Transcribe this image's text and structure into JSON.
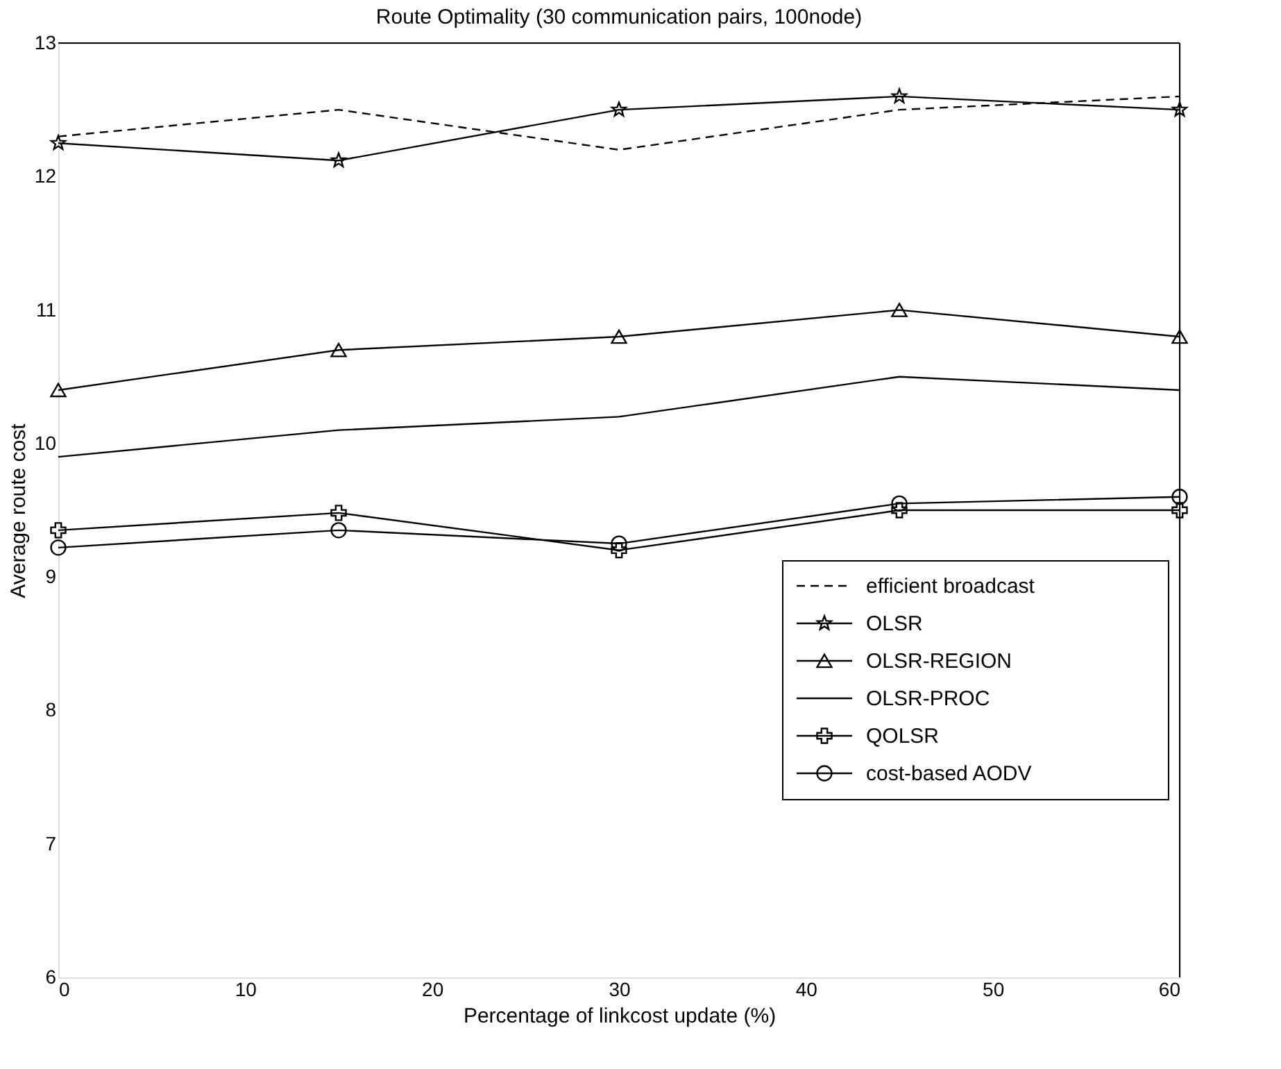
{
  "chart_data": {
    "type": "line",
    "title": "Route Optimality (30 communication pairs, 100node)",
    "xlabel": "Percentage of linkcost update (%)",
    "ylabel": "Average route cost",
    "x": [
      0,
      15,
      30,
      45,
      60
    ],
    "xlim": [
      0,
      60
    ],
    "xticks": [
      0,
      10,
      20,
      30,
      40,
      50,
      60
    ],
    "ylim": [
      6,
      13
    ],
    "yticks": [
      6,
      7,
      8,
      9,
      10,
      11,
      12,
      13
    ],
    "grid": false,
    "legend": "bottom right",
    "series": [
      {
        "name": "efficient broadcast",
        "color": "#000000",
        "line_style": "dashed",
        "marker": "none",
        "values": [
          12.3,
          12.5,
          12.2,
          12.5,
          12.6
        ]
      },
      {
        "name": "OLSR",
        "color": "#000000",
        "line_style": "solid",
        "marker": "star",
        "values": [
          12.25,
          12.12,
          12.5,
          12.6,
          12.5
        ]
      },
      {
        "name": "OLSR-REGION",
        "color": "#000000",
        "line_style": "solid",
        "marker": "triangle",
        "values": [
          10.4,
          10.7,
          10.8,
          11.0,
          10.8
        ]
      },
      {
        "name": "OLSR-PROC",
        "color": "#000000",
        "line_style": "solid",
        "marker": "none",
        "values": [
          9.9,
          10.1,
          10.2,
          10.5,
          10.4
        ]
      },
      {
        "name": "QOLSR",
        "color": "#000000",
        "line_style": "solid",
        "marker": "cross",
        "values": [
          9.35,
          9.48,
          9.2,
          9.5,
          9.5
        ]
      },
      {
        "name": "cost-based AODV",
        "color": "#000000",
        "line_style": "solid",
        "marker": "circle",
        "values": [
          9.22,
          9.35,
          9.25,
          9.55,
          9.6
        ]
      }
    ]
  }
}
